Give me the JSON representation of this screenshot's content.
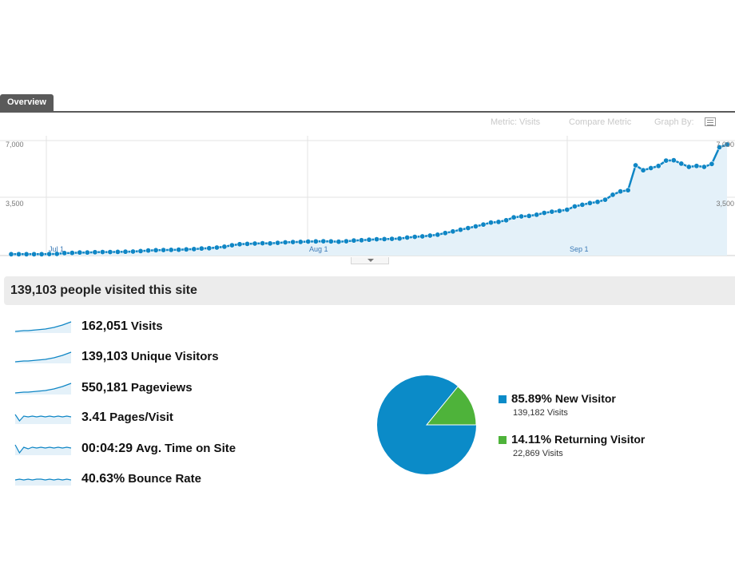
{
  "tab": {
    "label": "Overview"
  },
  "toolbar": {
    "metric_label": "Metric: Visits",
    "compare_label": "Compare Metric",
    "graph_by_label": "Graph By:"
  },
  "colors": {
    "line": "#0f86c5",
    "fill": "#e4f1f9",
    "new_visitor": "#0b8bc8",
    "returning_visitor": "#4eb33a",
    "summary_bg": "#ececec"
  },
  "chart_data": {
    "type": "line",
    "ylim": [
      0,
      7000
    ],
    "y_ticks_left": [
      "7,000",
      "3,500"
    ],
    "y_ticks_right": [
      "7,000",
      "3,500"
    ],
    "x_ticks": [
      "Jul 1",
      "Aug 1",
      "Sep 1"
    ],
    "grid": true,
    "values": [
      80,
      80,
      80,
      80,
      80,
      90,
      100,
      150,
      160,
      180,
      180,
      200,
      210,
      210,
      220,
      230,
      240,
      270,
      300,
      320,
      330,
      340,
      350,
      370,
      390,
      420,
      440,
      480,
      530,
      620,
      680,
      700,
      720,
      740,
      730,
      760,
      790,
      810,
      820,
      840,
      850,
      860,
      850,
      830,
      860,
      900,
      920,
      950,
      980,
      990,
      1000,
      1020,
      1080,
      1120,
      1150,
      1200,
      1250,
      1350,
      1450,
      1550,
      1650,
      1750,
      1860,
      1980,
      2020,
      2120,
      2290,
      2350,
      2380,
      2450,
      2560,
      2630,
      2680,
      2750,
      2950,
      3050,
      3150,
      3220,
      3350,
      3650,
      3850,
      3920,
      5420,
      5120,
      5250,
      5380,
      5700,
      5720,
      5520,
      5320,
      5380,
      5320,
      5500,
      6500,
      6670
    ]
  },
  "summary": {
    "headline": "139,103 people visited this site"
  },
  "metrics": [
    {
      "value": "162,051",
      "label": "Visits",
      "trend": "rising"
    },
    {
      "value": "139,103",
      "label": "Unique Visitors",
      "trend": "rising"
    },
    {
      "value": "550,181",
      "label": "Pageviews",
      "trend": "rising"
    },
    {
      "value": "3.41",
      "label": "Pages/Visit",
      "trend": "flat"
    },
    {
      "value": "00:04:29",
      "label": "Avg. Time on Site",
      "trend": "flat"
    },
    {
      "value": "40.63%",
      "label": "Bounce Rate",
      "trend": "flat"
    }
  ],
  "visitor_types": [
    {
      "percent": "85.89%",
      "share": 85.89,
      "name": "New Visitor",
      "count": "139,182 Visits"
    },
    {
      "percent": "14.11%",
      "share": 14.11,
      "name": "Returning Visitor",
      "count": "22,869 Visits"
    }
  ]
}
